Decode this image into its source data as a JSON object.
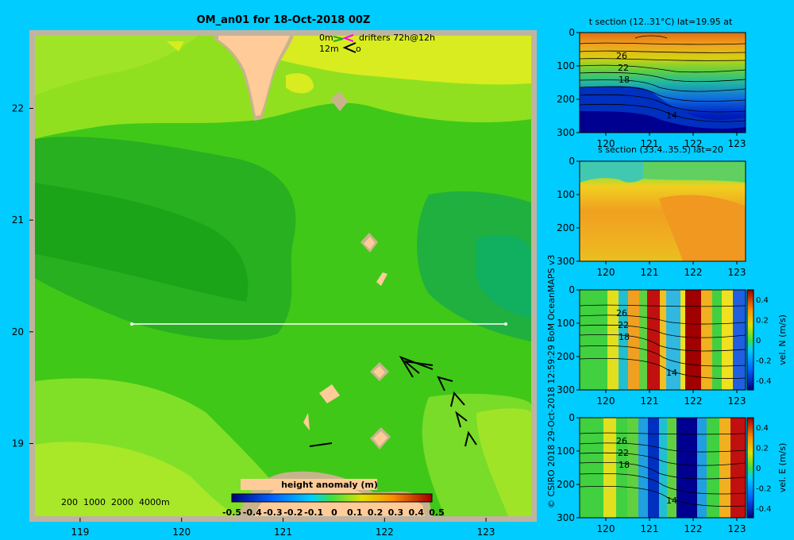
{
  "title": "OM_an01 for 18-Oct-2018 00Z",
  "drifter_legend": {
    "label_0m": "0m",
    "label_12m": "12m",
    "drifters": "drifters 72h@12h",
    "suffix": "o"
  },
  "depth_legend": "200  1000  2000  4000m",
  "credit": "© CSIRO 2018   29-Oct-2018 12:59:29 BoM OceanMAPS v3",
  "map": {
    "x_ticks": [
      "119",
      "120",
      "121",
      "122",
      "123"
    ],
    "y_ticks": [
      "22",
      "21",
      "20",
      "19"
    ],
    "section_lat": 20,
    "section_lon": [
      119.5,
      123.2
    ]
  },
  "colorbar": {
    "title": "height anomaly (m)",
    "min": -0.5,
    "max": 0.5,
    "ticks": [
      "-0.5",
      "-0.4",
      "-0.3",
      "-0.2",
      "-0.1",
      "0",
      "0.1",
      "0.2",
      "0.3",
      "0.4",
      "0.5"
    ]
  },
  "panels": [
    {
      "title": "t section (12..31°C) lat=19.95 at",
      "x_ticks": [
        "120",
        "121",
        "122",
        "123"
      ],
      "y_ticks": [
        "0",
        "100",
        "200",
        "300"
      ],
      "contour_labels": [
        "26",
        "22",
        "18",
        "14"
      ],
      "colorbar": null
    },
    {
      "title": "s section (33.4..35.5) lat=20",
      "x_ticks": [
        "120",
        "121",
        "122",
        "123"
      ],
      "y_ticks": [
        "0",
        "100",
        "200",
        "300"
      ],
      "contour_labels": [],
      "colorbar": null
    },
    {
      "title": "",
      "x_ticks": [
        "120",
        "121",
        "122",
        "123"
      ],
      "y_ticks": [
        "0",
        "100",
        "200",
        "300"
      ],
      "contour_labels": [
        "26",
        "22",
        "18",
        "14"
      ],
      "colorbar": {
        "label": "vel. N (m/s)",
        "ticks": [
          "0.4",
          "0.2",
          "0",
          "-0.2",
          "-0.4"
        ]
      }
    },
    {
      "title": "",
      "x_ticks": [
        "120",
        "121",
        "122",
        "123"
      ],
      "y_ticks": [
        "0",
        "100",
        "200",
        "300"
      ],
      "contour_labels": [
        "26",
        "22",
        "18",
        "14"
      ],
      "colorbar": {
        "label": "vel. E (m/s)",
        "ticks": [
          "0.4",
          "0.2",
          "0",
          "-0.2",
          "-0.4"
        ]
      }
    }
  ],
  "colors": {
    "background": "#00ccff",
    "land": "#ffcc99",
    "shelf": "#c8b48c",
    "frame": "#c0b4a0"
  }
}
